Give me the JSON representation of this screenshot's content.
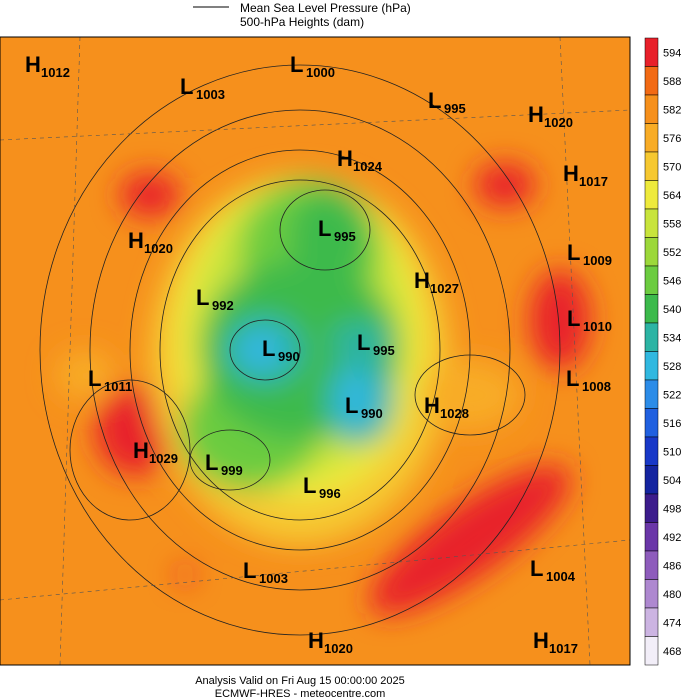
{
  "legend": {
    "line_label": "Mean Sea Level Pressure (hPa)",
    "fill_label": "500-hPa Heights (dam)"
  },
  "systems": [
    {
      "kind": "H",
      "value": 1012
    },
    {
      "kind": "L",
      "value": 1000
    },
    {
      "kind": "L",
      "value": 1003
    },
    {
      "kind": "L",
      "value": 995
    },
    {
      "kind": "H",
      "value": 1020
    },
    {
      "kind": "H",
      "value": 1024
    },
    {
      "kind": "H",
      "value": 1017
    },
    {
      "kind": "L",
      "value": 995
    },
    {
      "kind": "H",
      "value": 1020
    },
    {
      "kind": "L",
      "value": 1009
    },
    {
      "kind": "H",
      "value": 1027
    },
    {
      "kind": "L",
      "value": 992
    },
    {
      "kind": "L",
      "value": 1010
    },
    {
      "kind": "L",
      "value": 990
    },
    {
      "kind": "L",
      "value": 995
    },
    {
      "kind": "L",
      "value": 1008
    },
    {
      "kind": "L",
      "value": 1011
    },
    {
      "kind": "H",
      "value": 1028
    },
    {
      "kind": "L",
      "value": 990
    },
    {
      "kind": "H",
      "value": 1029
    },
    {
      "kind": "L",
      "value": 999
    },
    {
      "kind": "L",
      "value": 996
    },
    {
      "kind": "L",
      "value": 1003
    },
    {
      "kind": "L",
      "value": 1004
    },
    {
      "kind": "H",
      "value": 1020
    },
    {
      "kind": "H",
      "value": 1017
    }
  ],
  "colorbar": {
    "levels": [
      594,
      588,
      582,
      576,
      570,
      564,
      558,
      552,
      546,
      540,
      534,
      528,
      522,
      516,
      510,
      504,
      498,
      492,
      486,
      480,
      474,
      468
    ],
    "colors": [
      "#e8202a",
      "#f26a14",
      "#f6901c",
      "#f8ac26",
      "#f6c830",
      "#eeea3c",
      "#c8e43c",
      "#9cd83a",
      "#6ccc40",
      "#3cba4c",
      "#2cb4a4",
      "#30b8e0",
      "#2c8ce8",
      "#2060e0",
      "#1838c8",
      "#1424a0",
      "#3c1c8c",
      "#6a36a8",
      "#8e5cbc",
      "#ae88d0",
      "#ccb4e2",
      "#f2eef8"
    ]
  },
  "footer": {
    "line1": "Analysis Valid on Fri Aug 15 00:00:00 2025",
    "line2": "ECMWF-HRES - meteocentre.com"
  }
}
